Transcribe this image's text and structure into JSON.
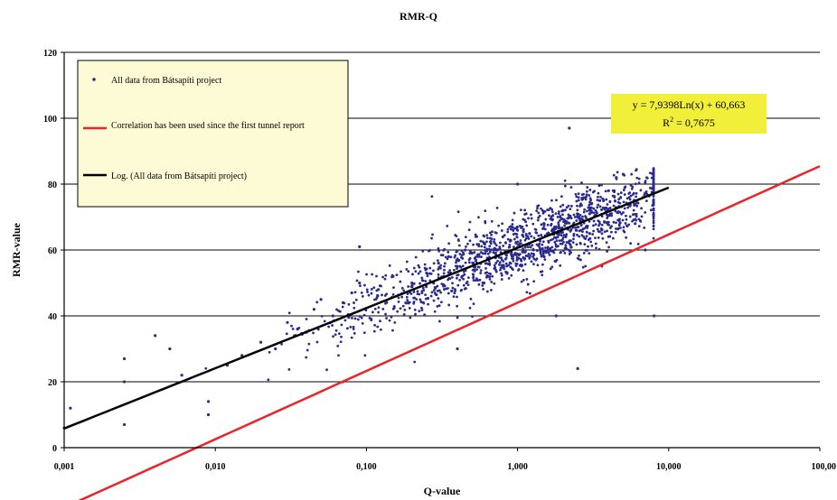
{
  "chart_data": {
    "type": "scatter",
    "title": "RMR-Q",
    "xlabel": "Q-value",
    "ylabel": "RMR-value",
    "x_scale": "log",
    "xlim": [
      0.001,
      100
    ],
    "ylim": [
      0,
      120
    ],
    "x_tick_labels": [
      "0,001",
      "0,010",
      "0,100",
      "1,000",
      "10,000",
      "100,00"
    ],
    "y_tick_labels": [
      "0",
      "20",
      "40",
      "60",
      "80",
      "100",
      "120"
    ],
    "y_ticks": [
      0,
      20,
      40,
      60,
      80,
      100,
      120
    ],
    "grid": {
      "horizontal": true,
      "vertical": false
    },
    "legend_position": "top-left",
    "series": [
      {
        "name": "All data from Bátsapíti project",
        "kind": "scatter",
        "color": "#2b2b8c",
        "marker": "dot",
        "points": [
          [
            0.0011,
            12
          ],
          [
            0.001,
            6
          ],
          [
            0.0025,
            27
          ],
          [
            0.0025,
            20
          ],
          [
            0.0025,
            7
          ],
          [
            0.004,
            34
          ],
          [
            0.005,
            30
          ],
          [
            0.006,
            22
          ],
          [
            0.009,
            10
          ],
          [
            0.009,
            14
          ],
          [
            0.012,
            25
          ],
          [
            0.015,
            28
          ],
          [
            0.02,
            32
          ],
          [
            0.025,
            30
          ],
          [
            0.03,
            38
          ],
          [
            0.035,
            36
          ],
          [
            0.04,
            35
          ],
          [
            0.045,
            42
          ],
          [
            0.05,
            45
          ],
          [
            0.06,
            40
          ],
          [
            0.07,
            44
          ],
          [
            0.08,
            47
          ],
          [
            0.09,
            50
          ],
          [
            0.07,
            20
          ],
          [
            0.09,
            61
          ],
          [
            0.12,
            48
          ],
          [
            0.15,
            52
          ],
          [
            0.2,
            50
          ],
          [
            0.25,
            53
          ],
          [
            0.3,
            56
          ],
          [
            0.35,
            58
          ],
          [
            0.4,
            55
          ],
          [
            0.45,
            60
          ],
          [
            0.5,
            59
          ],
          [
            0.6,
            62
          ],
          [
            0.7,
            60
          ],
          [
            0.8,
            64
          ],
          [
            0.9,
            63
          ],
          [
            1.0,
            66
          ],
          [
            1.2,
            65
          ],
          [
            1.5,
            68
          ],
          [
            1.8,
            67
          ],
          [
            2.0,
            72
          ],
          [
            2.5,
            70
          ],
          [
            3.0,
            71
          ],
          [
            3.5,
            75
          ],
          [
            4.0,
            78
          ],
          [
            4.5,
            82
          ],
          [
            5.0,
            83
          ],
          [
            1.8,
            40
          ],
          [
            2.5,
            24
          ],
          [
            2.2,
            97
          ],
          [
            0.4,
            30
          ],
          [
            1.0,
            80
          ],
          [
            8.0,
            40
          ],
          [
            6.0,
            68
          ],
          [
            7.0,
            60
          ],
          [
            3.0,
            65
          ],
          [
            1.5,
            58
          ],
          [
            0.6,
            50
          ]
        ]
      },
      {
        "name": "Correlation has been used since the first tunnel report",
        "kind": "line",
        "color": "#e8252a",
        "formula": "y = 9*ln(x) + 44",
        "x_range": [
          0.001,
          100
        ]
      },
      {
        "name": "Log. (All data from Bátsapíti project)",
        "kind": "line",
        "color": "#000000",
        "formula": "y = 7,9398Ln(x) + 60,663",
        "x_range": [
          0.001,
          10
        ]
      }
    ],
    "annotation": {
      "equation": "y = 7,9398Ln(x) + 60,663",
      "r_squared_label": "R",
      "r_squared_sup": "2",
      "r_squared_value": " = 0,7675",
      "background": "#f2ef3a"
    },
    "colors": {
      "legend_bg": "#fdfbd5",
      "gridline": "#000000"
    }
  }
}
